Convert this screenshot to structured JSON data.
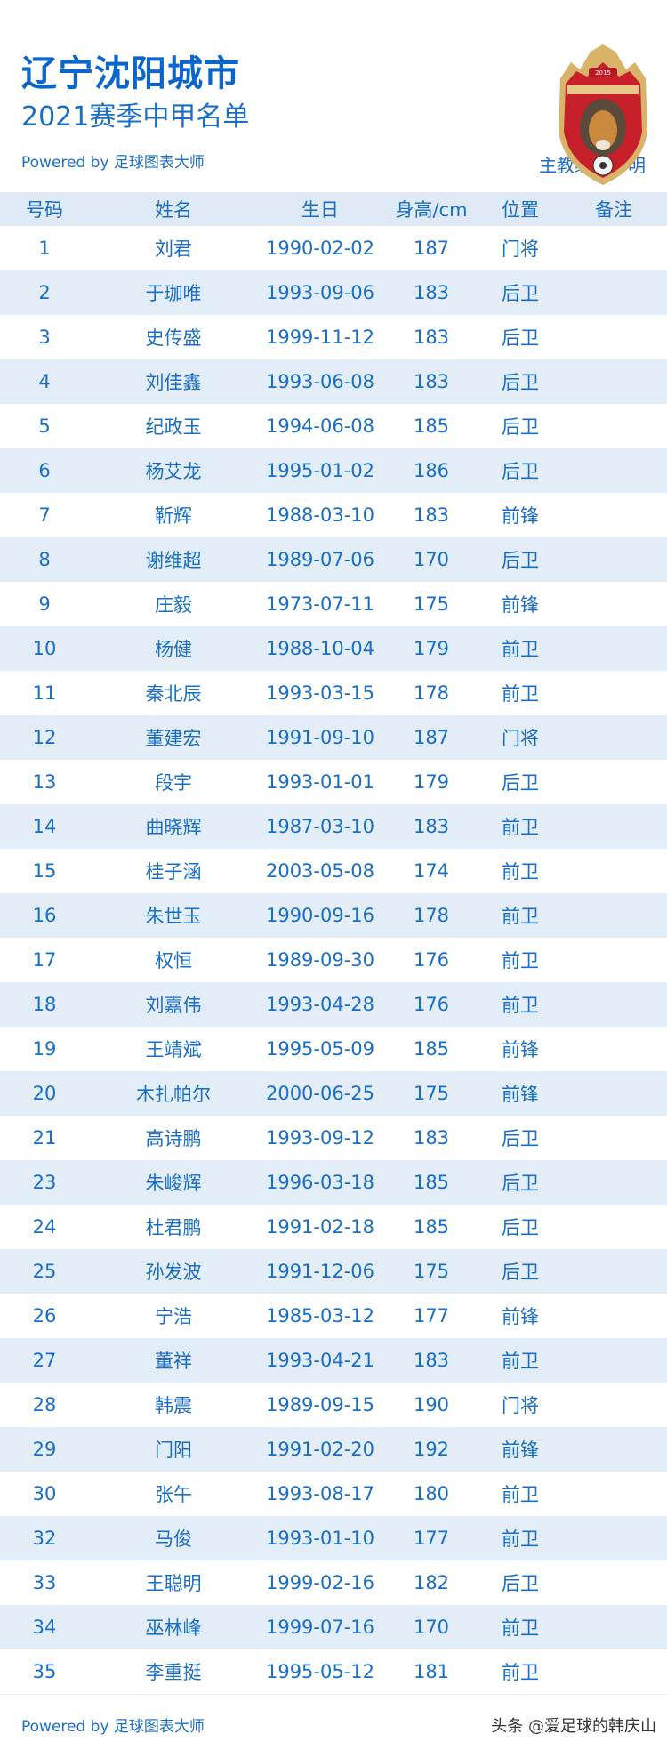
{
  "header": {
    "title": "辽宁沈阳城市",
    "subtitle": "2021赛季中甲名单",
    "powered_by": "Powered by 足球图表大师",
    "coach": "主教练：于明",
    "logo_text": "2015 辽宁沈阳城市足球俱乐部"
  },
  "table": {
    "columns": [
      "号码",
      "姓名",
      "生日",
      "身高/cm",
      "位置",
      "备注"
    ],
    "rows": [
      [
        "1",
        "刘君",
        "1990-02-02",
        "187",
        "门将",
        ""
      ],
      [
        "2",
        "于珈唯",
        "1993-09-06",
        "183",
        "后卫",
        ""
      ],
      [
        "3",
        "史传盛",
        "1999-11-12",
        "183",
        "后卫",
        ""
      ],
      [
        "4",
        "刘佳鑫",
        "1993-06-08",
        "183",
        "后卫",
        ""
      ],
      [
        "5",
        "纪政玉",
        "1994-06-08",
        "185",
        "后卫",
        ""
      ],
      [
        "6",
        "杨艾龙",
        "1995-01-02",
        "186",
        "后卫",
        ""
      ],
      [
        "7",
        "靳辉",
        "1988-03-10",
        "183",
        "前锋",
        ""
      ],
      [
        "8",
        "谢维超",
        "1989-07-06",
        "170",
        "后卫",
        ""
      ],
      [
        "9",
        "庄毅",
        "1973-07-11",
        "175",
        "前锋",
        ""
      ],
      [
        "10",
        "杨健",
        "1988-10-04",
        "179",
        "前卫",
        ""
      ],
      [
        "11",
        "秦北辰",
        "1993-03-15",
        "178",
        "前卫",
        ""
      ],
      [
        "12",
        "董建宏",
        "1991-09-10",
        "187",
        "门将",
        ""
      ],
      [
        "13",
        "段宇",
        "1993-01-01",
        "179",
        "后卫",
        ""
      ],
      [
        "14",
        "曲晓辉",
        "1987-03-10",
        "183",
        "前卫",
        ""
      ],
      [
        "15",
        "桂子涵",
        "2003-05-08",
        "174",
        "前卫",
        ""
      ],
      [
        "16",
        "朱世玉",
        "1990-09-16",
        "178",
        "前卫",
        ""
      ],
      [
        "17",
        "权恒",
        "1989-09-30",
        "176",
        "前卫",
        ""
      ],
      [
        "18",
        "刘嘉伟",
        "1993-04-28",
        "176",
        "前卫",
        ""
      ],
      [
        "19",
        "王靖斌",
        "1995-05-09",
        "185",
        "前锋",
        ""
      ],
      [
        "20",
        "木扎帕尔",
        "2000-06-25",
        "175",
        "前锋",
        ""
      ],
      [
        "21",
        "高诗鹏",
        "1993-09-12",
        "183",
        "后卫",
        ""
      ],
      [
        "23",
        "朱峻辉",
        "1996-03-18",
        "185",
        "后卫",
        ""
      ],
      [
        "24",
        "杜君鹏",
        "1991-02-18",
        "185",
        "后卫",
        ""
      ],
      [
        "25",
        "孙发波",
        "1991-12-06",
        "175",
        "后卫",
        ""
      ],
      [
        "26",
        "宁浩",
        "1985-03-12",
        "177",
        "前锋",
        ""
      ],
      [
        "27",
        "董祥",
        "1993-04-21",
        "183",
        "前卫",
        ""
      ],
      [
        "28",
        "韩震",
        "1989-09-15",
        "190",
        "门将",
        ""
      ],
      [
        "29",
        "门阳",
        "1991-02-20",
        "192",
        "前锋",
        ""
      ],
      [
        "30",
        "张午",
        "1993-08-17",
        "180",
        "前卫",
        ""
      ],
      [
        "32",
        "马俊",
        "1993-01-10",
        "177",
        "前卫",
        ""
      ],
      [
        "33",
        "王聪明",
        "1999-02-16",
        "182",
        "后卫",
        ""
      ],
      [
        "34",
        "巫林峰",
        "1999-07-16",
        "170",
        "前卫",
        ""
      ],
      [
        "35",
        "李重挺",
        "1995-05-12",
        "181",
        "前卫",
        ""
      ]
    ]
  },
  "footer": {
    "powered_by": "Powered by 足球图表大师",
    "credit": "头条 @爱足球的韩庆山"
  },
  "colors": {
    "accent": "#1a6fc4",
    "row_alt": "#e3edf8",
    "header_bg": "#dfeaf6"
  }
}
